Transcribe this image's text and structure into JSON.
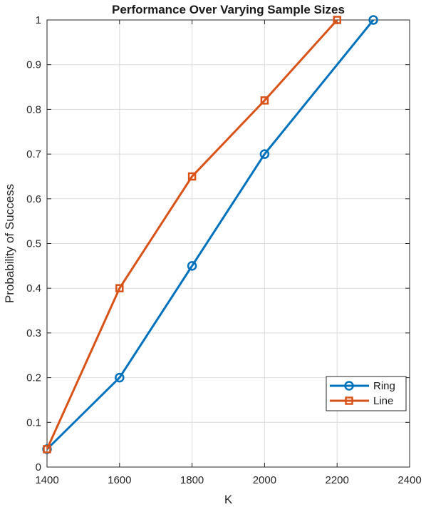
{
  "chart_data": {
    "type": "line",
    "title": "Performance Over Varying Sample Sizes",
    "xlabel": "K",
    "ylabel": "Probability of Success",
    "xlim": [
      1400,
      2400
    ],
    "ylim": [
      0,
      1
    ],
    "xticks": [
      1400,
      1600,
      1800,
      2000,
      2200,
      2400
    ],
    "yticks": [
      0,
      0.1,
      0.2,
      0.3,
      0.4,
      0.5,
      0.6,
      0.7,
      0.8,
      0.9,
      1
    ],
    "ytick_labels": [
      "0",
      "0.1",
      "0.2",
      "0.3",
      "0.4",
      "0.5",
      "0.6",
      "0.7",
      "0.8",
      "0.9",
      "1"
    ],
    "grid": true,
    "legend_position": "bottom-right",
    "series": [
      {
        "name": "Ring",
        "color": "#0072BD",
        "marker": "circle",
        "x": [
          1400,
          1600,
          1800,
          2000,
          2300
        ],
        "y": [
          0.04,
          0.2,
          0.45,
          0.7,
          1.0
        ]
      },
      {
        "name": "Line",
        "color": "#D95319",
        "marker": "square",
        "x": [
          1400,
          1600,
          1800,
          2000,
          2200
        ],
        "y": [
          0.04,
          0.4,
          0.65,
          0.82,
          1.0
        ]
      }
    ]
  }
}
